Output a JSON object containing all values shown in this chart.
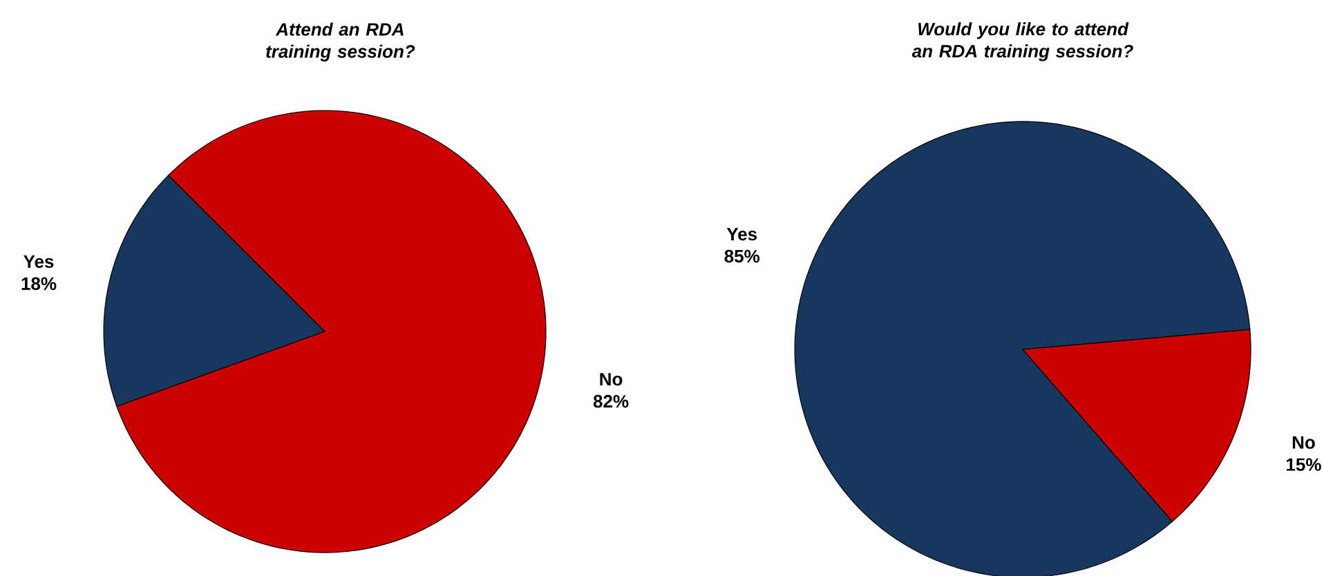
{
  "chart_data": [
    {
      "type": "pie",
      "title": "Attend an RDA training session?",
      "categories": [
        "Yes",
        "No"
      ],
      "values": [
        18,
        82
      ],
      "colors": [
        "#17375e",
        "#cc0000"
      ],
      "value_labels": [
        "18%",
        "82%"
      ]
    },
    {
      "type": "pie",
      "title": "Would you like to attend an RDA training session?",
      "categories": [
        "Yes",
        "No"
      ],
      "values": [
        85,
        15
      ],
      "colors": [
        "#17375e",
        "#cc0000"
      ],
      "value_labels": [
        "85%",
        "15%"
      ]
    }
  ]
}
